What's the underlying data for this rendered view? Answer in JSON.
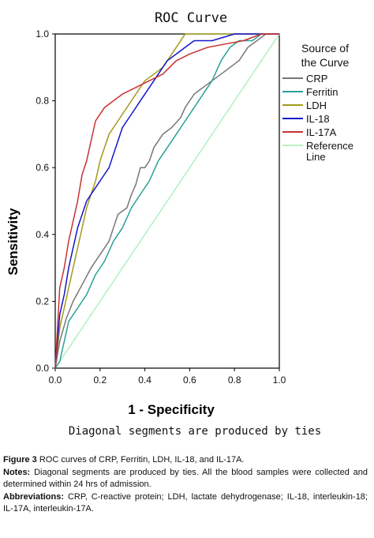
{
  "chart_data": {
    "type": "line",
    "title": "ROC Curve",
    "xlabel": "1 - Specificity",
    "ylabel": "Sensitivity",
    "xlim": [
      0,
      1
    ],
    "ylim": [
      0,
      1
    ],
    "x_ticks": [
      "0.0",
      "0.2",
      "0.4",
      "0.6",
      "0.8",
      "1.0"
    ],
    "y_ticks": [
      "0.0",
      "0.2",
      "0.4",
      "0.6",
      "0.8",
      "1.0"
    ],
    "grid": false,
    "legend_title": "Source of the Curve",
    "legend_placement": "right",
    "footnote": "Diagonal segments are produced by ties",
    "series": [
      {
        "name": "CRP",
        "color": "#777777",
        "points": [
          [
            0,
            0
          ],
          [
            0.02,
            0.08
          ],
          [
            0.05,
            0.15
          ],
          [
            0.08,
            0.2
          ],
          [
            0.12,
            0.25
          ],
          [
            0.16,
            0.3
          ],
          [
            0.2,
            0.34
          ],
          [
            0.24,
            0.38
          ],
          [
            0.26,
            0.42
          ],
          [
            0.28,
            0.46
          ],
          [
            0.32,
            0.48
          ],
          [
            0.34,
            0.52
          ],
          [
            0.36,
            0.55
          ],
          [
            0.38,
            0.6
          ],
          [
            0.4,
            0.6
          ],
          [
            0.42,
            0.62
          ],
          [
            0.44,
            0.66
          ],
          [
            0.48,
            0.7
          ],
          [
            0.52,
            0.72
          ],
          [
            0.56,
            0.75
          ],
          [
            0.58,
            0.78
          ],
          [
            0.62,
            0.82
          ],
          [
            0.66,
            0.84
          ],
          [
            0.7,
            0.86
          ],
          [
            0.74,
            0.88
          ],
          [
            0.78,
            0.9
          ],
          [
            0.82,
            0.92
          ],
          [
            0.86,
            0.96
          ],
          [
            0.9,
            0.98
          ],
          [
            0.94,
            1.0
          ],
          [
            1.0,
            1.0
          ]
        ]
      },
      {
        "name": "Ferritin",
        "color": "#2aa198",
        "points": [
          [
            0,
            0
          ],
          [
            0.02,
            0.02
          ],
          [
            0.04,
            0.08
          ],
          [
            0.06,
            0.14
          ],
          [
            0.1,
            0.18
          ],
          [
            0.14,
            0.22
          ],
          [
            0.18,
            0.28
          ],
          [
            0.22,
            0.32
          ],
          [
            0.26,
            0.38
          ],
          [
            0.3,
            0.42
          ],
          [
            0.34,
            0.48
          ],
          [
            0.38,
            0.52
          ],
          [
            0.42,
            0.56
          ],
          [
            0.46,
            0.62
          ],
          [
            0.5,
            0.66
          ],
          [
            0.54,
            0.7
          ],
          [
            0.58,
            0.74
          ],
          [
            0.62,
            0.78
          ],
          [
            0.66,
            0.82
          ],
          [
            0.7,
            0.86
          ],
          [
            0.74,
            0.92
          ],
          [
            0.78,
            0.96
          ],
          [
            0.82,
            0.98
          ],
          [
            0.88,
            0.98
          ],
          [
            0.92,
            1.0
          ],
          [
            1.0,
            1.0
          ]
        ]
      },
      {
        "name": "LDH",
        "color": "#a39b1c",
        "points": [
          [
            0,
            0
          ],
          [
            0.02,
            0.12
          ],
          [
            0.04,
            0.18
          ],
          [
            0.06,
            0.24
          ],
          [
            0.08,
            0.3
          ],
          [
            0.1,
            0.36
          ],
          [
            0.12,
            0.42
          ],
          [
            0.14,
            0.48
          ],
          [
            0.16,
            0.52
          ],
          [
            0.18,
            0.56
          ],
          [
            0.2,
            0.62
          ],
          [
            0.22,
            0.66
          ],
          [
            0.24,
            0.7
          ],
          [
            0.28,
            0.74
          ],
          [
            0.32,
            0.78
          ],
          [
            0.36,
            0.82
          ],
          [
            0.4,
            0.86
          ],
          [
            0.44,
            0.88
          ],
          [
            0.48,
            0.9
          ],
          [
            0.52,
            0.94
          ],
          [
            0.56,
            0.98
          ],
          [
            0.58,
            1.0
          ],
          [
            1.0,
            1.0
          ]
        ]
      },
      {
        "name": "IL-18",
        "color": "#1515c9",
        "points": [
          [
            0,
            0
          ],
          [
            0.02,
            0.16
          ],
          [
            0.04,
            0.22
          ],
          [
            0.06,
            0.3
          ],
          [
            0.08,
            0.36
          ],
          [
            0.1,
            0.42
          ],
          [
            0.12,
            0.46
          ],
          [
            0.14,
            0.5
          ],
          [
            0.16,
            0.52
          ],
          [
            0.2,
            0.56
          ],
          [
            0.24,
            0.6
          ],
          [
            0.26,
            0.64
          ],
          [
            0.28,
            0.68
          ],
          [
            0.3,
            0.72
          ],
          [
            0.34,
            0.76
          ],
          [
            0.38,
            0.8
          ],
          [
            0.42,
            0.84
          ],
          [
            0.46,
            0.88
          ],
          [
            0.5,
            0.92
          ],
          [
            0.54,
            0.94
          ],
          [
            0.58,
            0.96
          ],
          [
            0.62,
            0.98
          ],
          [
            0.7,
            0.98
          ],
          [
            0.8,
            1.0
          ],
          [
            1.0,
            1.0
          ]
        ]
      },
      {
        "name": "IL-17A",
        "color": "#c83232",
        "points": [
          [
            0,
            0
          ],
          [
            0.02,
            0.24
          ],
          [
            0.04,
            0.3
          ],
          [
            0.06,
            0.38
          ],
          [
            0.08,
            0.44
          ],
          [
            0.1,
            0.5
          ],
          [
            0.12,
            0.58
          ],
          [
            0.14,
            0.62
          ],
          [
            0.16,
            0.68
          ],
          [
            0.18,
            0.74
          ],
          [
            0.22,
            0.78
          ],
          [
            0.26,
            0.8
          ],
          [
            0.3,
            0.82
          ],
          [
            0.36,
            0.84
          ],
          [
            0.42,
            0.86
          ],
          [
            0.48,
            0.88
          ],
          [
            0.54,
            0.92
          ],
          [
            0.6,
            0.94
          ],
          [
            0.68,
            0.96
          ],
          [
            0.76,
            0.97
          ],
          [
            0.84,
            0.98
          ],
          [
            0.92,
            1.0
          ],
          [
            1.0,
            1.0
          ]
        ]
      },
      {
        "name": "Reference Line",
        "color": "#b9f0c3",
        "points": [
          [
            0,
            0
          ],
          [
            1,
            1
          ]
        ]
      }
    ]
  },
  "caption": {
    "figure_label": "Figure 3",
    "figure_text": "ROC curves of CRP, Ferritin, LDH, IL-18, and IL-17A.",
    "notes_label": "Notes:",
    "notes_text": "Diagonal segments are produced by ties. All the blood samples were collected and determined within 24 hrs of admission.",
    "abbrev_label": "Abbreviations:",
    "abbrev_text": "CRP, C-reactive protein; LDH, lactate dehydrogenase; IL-18, interleukin-18; IL-17A, interleukin-17A."
  }
}
